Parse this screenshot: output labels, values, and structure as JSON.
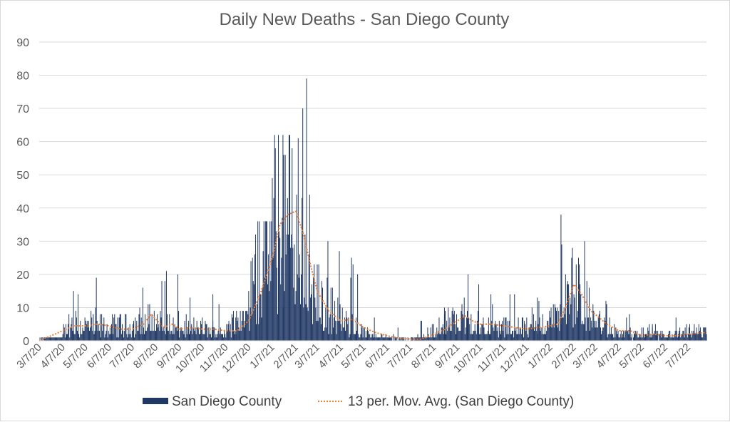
{
  "chart_data": {
    "type": "bar",
    "title": "Daily New Deaths - San Diego County",
    "xlabel": "",
    "ylabel": "",
    "ylim": [
      0,
      90
    ],
    "yticks": [
      0,
      10,
      20,
      30,
      40,
      50,
      60,
      70,
      80,
      90
    ],
    "grid": true,
    "legend_position": "bottom",
    "colors": {
      "bars": "#203864",
      "moving_average": "#ed7d31"
    },
    "x_start_date": "3/7/20",
    "x_end_date": "7/31/22",
    "x_tick_labels": [
      "3/7/20",
      "4/7/20",
      "5/7/20",
      "6/7/20",
      "7/7/20",
      "8/7/20",
      "9/7/20",
      "10/7/20",
      "11/7/20",
      "12/7/20",
      "1/7/21",
      "2/7/21",
      "3/7/21",
      "4/7/21",
      "5/7/21",
      "6/7/21",
      "7/7/21",
      "8/7/21",
      "9/7/21",
      "10/7/21",
      "11/7/21",
      "12/7/21",
      "1/7/22",
      "2/7/22",
      "3/7/22",
      "4/7/22",
      "5/7/22",
      "6/7/22",
      "7/7/22"
    ],
    "series": [
      {
        "name": "San Diego County",
        "kind": "bar",
        "monthly": [
          {
            "x": "3/7/20",
            "mean": 0.3,
            "peak": 1
          },
          {
            "x": "4/7/20",
            "mean": 3.5,
            "peak": 15
          },
          {
            "x": "5/7/20",
            "mean": 5,
            "peak": 19
          },
          {
            "x": "6/7/20",
            "mean": 4,
            "peak": 8
          },
          {
            "x": "7/7/20",
            "mean": 5,
            "peak": 16
          },
          {
            "x": "8/7/20",
            "mean": 6,
            "peak": 21
          },
          {
            "x": "9/7/20",
            "mean": 4,
            "peak": 13
          },
          {
            "x": "10/7/20",
            "mean": 3.5,
            "peak": 14
          },
          {
            "x": "11/7/20",
            "mean": 3,
            "peak": 9
          },
          {
            "x": "12/7/20",
            "mean": 12,
            "peak": 36
          },
          {
            "x": "1/7/21",
            "mean": 35,
            "peak": 62
          },
          {
            "x": "2/7/21",
            "mean": 38,
            "peak": 79
          },
          {
            "x": "3/7/21",
            "mean": 12,
            "peak": 30
          },
          {
            "x": "4/7/21",
            "mean": 6,
            "peak": 25
          },
          {
            "x": "5/7/21",
            "mean": 2.5,
            "peak": 7
          },
          {
            "x": "6/7/21",
            "mean": 0.8,
            "peak": 4
          },
          {
            "x": "7/7/21",
            "mean": 0.6,
            "peak": 6
          },
          {
            "x": "8/7/21",
            "mean": 3,
            "peak": 10
          },
          {
            "x": "9/7/21",
            "mean": 7,
            "peak": 20
          },
          {
            "x": "10/7/21",
            "mean": 5,
            "peak": 14
          },
          {
            "x": "11/7/21",
            "mean": 4,
            "peak": 14
          },
          {
            "x": "12/7/21",
            "mean": 4,
            "peak": 13
          },
          {
            "x": "1/7/22",
            "mean": 6,
            "peak": 38
          },
          {
            "x": "2/7/22",
            "mean": 14,
            "peak": 30
          },
          {
            "x": "3/7/22",
            "mean": 6,
            "peak": 12
          },
          {
            "x": "4/7/22",
            "mean": 2,
            "peak": 8
          },
          {
            "x": "5/7/22",
            "mean": 2,
            "peak": 5
          },
          {
            "x": "6/7/22",
            "mean": 1.5,
            "peak": 7
          },
          {
            "x": "7/7/22",
            "mean": 2.5,
            "peak": 5
          }
        ]
      },
      {
        "name": "13 per. Mov. Avg. (San Diego County)",
        "kind": "line",
        "dash": "dotted",
        "points": [
          {
            "x": "3/7/20",
            "y": 0
          },
          {
            "x": "4/7/20",
            "y": 3
          },
          {
            "x": "4/22/20",
            "y": 4.5
          },
          {
            "x": "5/7/20",
            "y": 4.5
          },
          {
            "x": "5/22/20",
            "y": 5
          },
          {
            "x": "6/7/20",
            "y": 4.5
          },
          {
            "x": "6/22/20",
            "y": 3.5
          },
          {
            "x": "7/7/20",
            "y": 3.5
          },
          {
            "x": "7/22/20",
            "y": 5
          },
          {
            "x": "8/1/20",
            "y": 8
          },
          {
            "x": "8/7/20",
            "y": 6.5
          },
          {
            "x": "8/17/20",
            "y": 4
          },
          {
            "x": "8/29/20",
            "y": 5
          },
          {
            "x": "9/7/20",
            "y": 3.5
          },
          {
            "x": "9/22/20",
            "y": 4
          },
          {
            "x": "10/7/20",
            "y": 3.5
          },
          {
            "x": "10/22/20",
            "y": 3.5
          },
          {
            "x": "11/7/20",
            "y": 3
          },
          {
            "x": "11/22/20",
            "y": 3
          },
          {
            "x": "12/7/20",
            "y": 6
          },
          {
            "x": "12/22/20",
            "y": 14
          },
          {
            "x": "1/7/21",
            "y": 25
          },
          {
            "x": "1/17/21",
            "y": 35
          },
          {
            "x": "1/27/21",
            "y": 38
          },
          {
            "x": "2/7/21",
            "y": 39
          },
          {
            "x": "2/17/21",
            "y": 32
          },
          {
            "x": "2/27/21",
            "y": 22
          },
          {
            "x": "3/7/21",
            "y": 15
          },
          {
            "x": "3/22/21",
            "y": 9
          },
          {
            "x": "4/7/21",
            "y": 6
          },
          {
            "x": "4/22/21",
            "y": 6.5
          },
          {
            "x": "5/7/21",
            "y": 4
          },
          {
            "x": "5/22/21",
            "y": 2.5
          },
          {
            "x": "6/7/21",
            "y": 1.5
          },
          {
            "x": "6/22/21",
            "y": 0.8
          },
          {
            "x": "7/7/21",
            "y": 0.5
          },
          {
            "x": "7/22/21",
            "y": 0.5
          },
          {
            "x": "8/7/21",
            "y": 2
          },
          {
            "x": "8/22/21",
            "y": 3.5
          },
          {
            "x": "9/7/21",
            "y": 6
          },
          {
            "x": "9/17/21",
            "y": 7.5
          },
          {
            "x": "9/27/21",
            "y": 6
          },
          {
            "x": "10/7/21",
            "y": 5
          },
          {
            "x": "10/22/21",
            "y": 5
          },
          {
            "x": "11/7/21",
            "y": 4.5
          },
          {
            "x": "11/22/21",
            "y": 4
          },
          {
            "x": "12/7/21",
            "y": 3.5
          },
          {
            "x": "12/22/21",
            "y": 4
          },
          {
            "x": "1/7/22",
            "y": 4.5
          },
          {
            "x": "1/17/22",
            "y": 5
          },
          {
            "x": "1/27/22",
            "y": 10
          },
          {
            "x": "2/7/22",
            "y": 17
          },
          {
            "x": "2/17/22",
            "y": 14
          },
          {
            "x": "3/1/22",
            "y": 9
          },
          {
            "x": "3/7/22",
            "y": 8
          },
          {
            "x": "3/22/22",
            "y": 5
          },
          {
            "x": "4/7/22",
            "y": 3
          },
          {
            "x": "4/22/22",
            "y": 3
          },
          {
            "x": "5/7/22",
            "y": 1.5
          },
          {
            "x": "5/22/22",
            "y": 2
          },
          {
            "x": "6/7/22",
            "y": 1.5
          },
          {
            "x": "6/22/22",
            "y": 1.5
          },
          {
            "x": "7/7/22",
            "y": 2
          },
          {
            "x": "7/31/22",
            "y": 2.5
          }
        ]
      }
    ],
    "legend": [
      {
        "label": "San Diego County",
        "kind": "bar"
      },
      {
        "label": "13 per. Mov. Avg. (San Diego County)",
        "kind": "line"
      }
    ]
  }
}
